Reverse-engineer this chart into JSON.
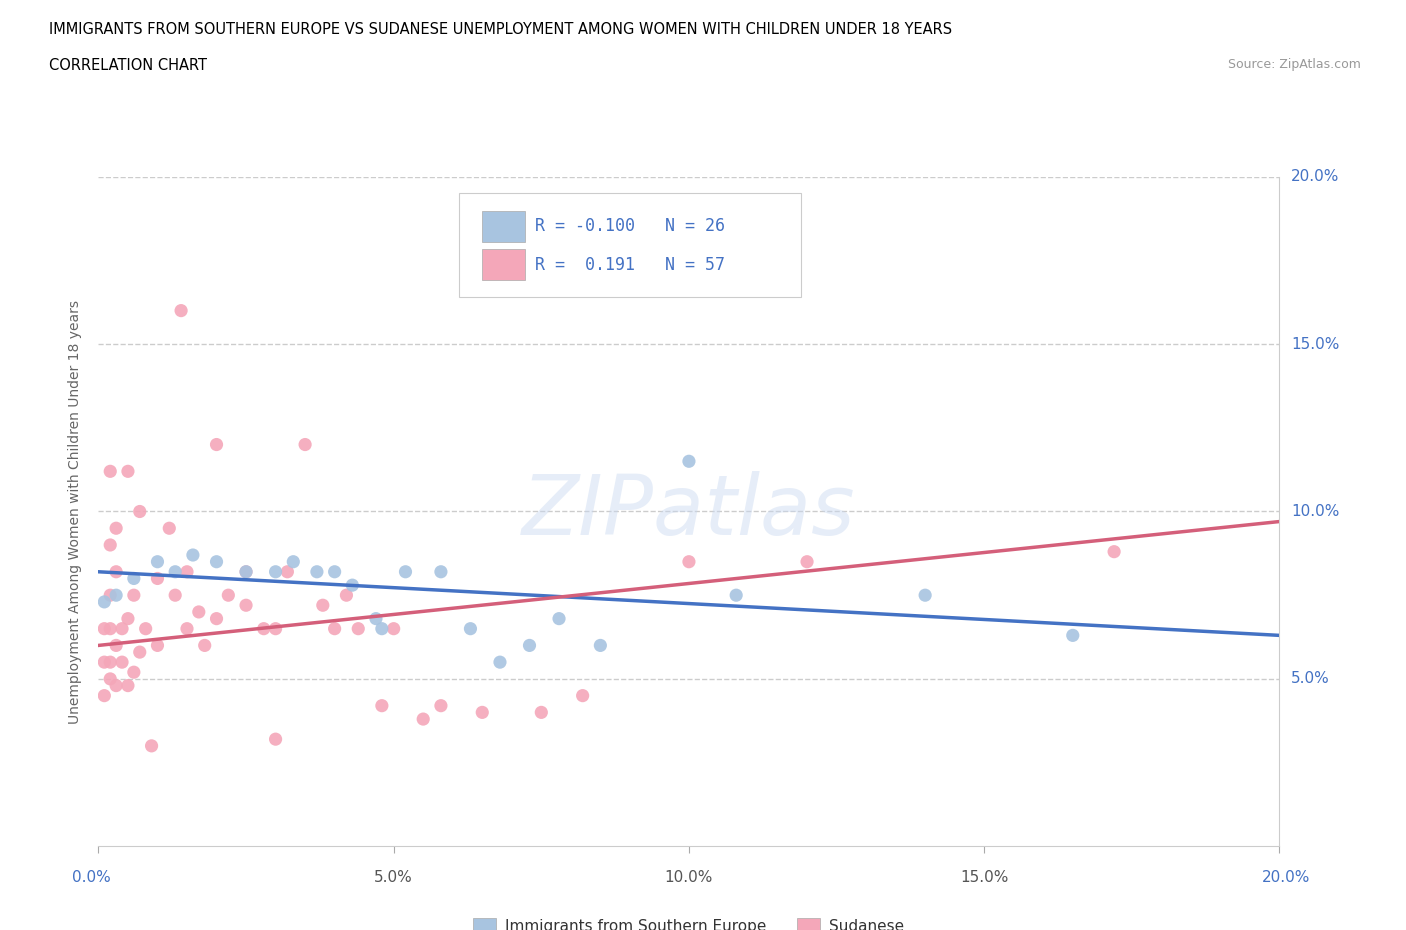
{
  "title": "IMMIGRANTS FROM SOUTHERN EUROPE VS SUDANESE UNEMPLOYMENT AMONG WOMEN WITH CHILDREN UNDER 18 YEARS",
  "subtitle": "CORRELATION CHART",
  "source": "Source: ZipAtlas.com",
  "ylabel": "Unemployment Among Women with Children Under 18 years",
  "xlim": [
    0.0,
    0.2
  ],
  "ylim": [
    0.0,
    0.2
  ],
  "xticks": [
    0.0,
    0.05,
    0.1,
    0.15,
    0.2
  ],
  "yticks": [
    0.05,
    0.1,
    0.15,
    0.2
  ],
  "xticklabels": [
    "0.0%",
    "5.0%",
    "10.0%",
    "15.0%",
    "20.0%"
  ],
  "yticklabels": [
    "5.0%",
    "10.0%",
    "15.0%",
    "20.0%"
  ],
  "blue_color": "#a8c4e0",
  "pink_color": "#f4a7b9",
  "blue_line_color": "#4472c4",
  "pink_line_color": "#d45f7a",
  "tick_label_color": "#4472c4",
  "grid_color": "#cccccc",
  "blue_scatter": [
    [
      0.001,
      0.073
    ],
    [
      0.003,
      0.075
    ],
    [
      0.006,
      0.08
    ],
    [
      0.01,
      0.085
    ],
    [
      0.013,
      0.082
    ],
    [
      0.016,
      0.087
    ],
    [
      0.02,
      0.085
    ],
    [
      0.025,
      0.082
    ],
    [
      0.03,
      0.082
    ],
    [
      0.033,
      0.085
    ],
    [
      0.037,
      0.082
    ],
    [
      0.04,
      0.082
    ],
    [
      0.043,
      0.078
    ],
    [
      0.047,
      0.068
    ],
    [
      0.052,
      0.082
    ],
    [
      0.058,
      0.082
    ],
    [
      0.063,
      0.065
    ],
    [
      0.068,
      0.055
    ],
    [
      0.073,
      0.06
    ],
    [
      0.078,
      0.068
    ],
    [
      0.085,
      0.06
    ],
    [
      0.1,
      0.115
    ],
    [
      0.108,
      0.075
    ],
    [
      0.14,
      0.075
    ],
    [
      0.165,
      0.063
    ],
    [
      0.048,
      0.065
    ]
  ],
  "pink_scatter": [
    [
      0.001,
      0.045
    ],
    [
      0.001,
      0.055
    ],
    [
      0.001,
      0.065
    ],
    [
      0.002,
      0.05
    ],
    [
      0.002,
      0.055
    ],
    [
      0.002,
      0.065
    ],
    [
      0.002,
      0.075
    ],
    [
      0.002,
      0.09
    ],
    [
      0.003,
      0.048
    ],
    [
      0.003,
      0.06
    ],
    [
      0.003,
      0.082
    ],
    [
      0.003,
      0.095
    ],
    [
      0.004,
      0.055
    ],
    [
      0.004,
      0.065
    ],
    [
      0.005,
      0.048
    ],
    [
      0.005,
      0.068
    ],
    [
      0.005,
      0.112
    ],
    [
      0.006,
      0.052
    ],
    [
      0.006,
      0.075
    ],
    [
      0.007,
      0.058
    ],
    [
      0.007,
      0.1
    ],
    [
      0.008,
      0.065
    ],
    [
      0.009,
      0.03
    ],
    [
      0.01,
      0.06
    ],
    [
      0.01,
      0.08
    ],
    [
      0.012,
      0.095
    ],
    [
      0.013,
      0.075
    ],
    [
      0.014,
      0.16
    ],
    [
      0.015,
      0.065
    ],
    [
      0.015,
      0.082
    ],
    [
      0.017,
      0.07
    ],
    [
      0.018,
      0.06
    ],
    [
      0.02,
      0.068
    ],
    [
      0.02,
      0.12
    ],
    [
      0.022,
      0.075
    ],
    [
      0.025,
      0.072
    ],
    [
      0.025,
      0.082
    ],
    [
      0.028,
      0.065
    ],
    [
      0.03,
      0.032
    ],
    [
      0.03,
      0.065
    ],
    [
      0.032,
      0.082
    ],
    [
      0.035,
      0.12
    ],
    [
      0.038,
      0.072
    ],
    [
      0.04,
      0.065
    ],
    [
      0.042,
      0.075
    ],
    [
      0.044,
      0.065
    ],
    [
      0.048,
      0.042
    ],
    [
      0.05,
      0.065
    ],
    [
      0.055,
      0.038
    ],
    [
      0.058,
      0.042
    ],
    [
      0.065,
      0.04
    ],
    [
      0.075,
      0.04
    ],
    [
      0.082,
      0.045
    ],
    [
      0.1,
      0.085
    ],
    [
      0.12,
      0.085
    ],
    [
      0.172,
      0.088
    ],
    [
      0.002,
      0.112
    ]
  ],
  "blue_line_y0": 0.082,
  "blue_line_y1": 0.063,
  "pink_line_y0": 0.06,
  "pink_line_y1": 0.097
}
